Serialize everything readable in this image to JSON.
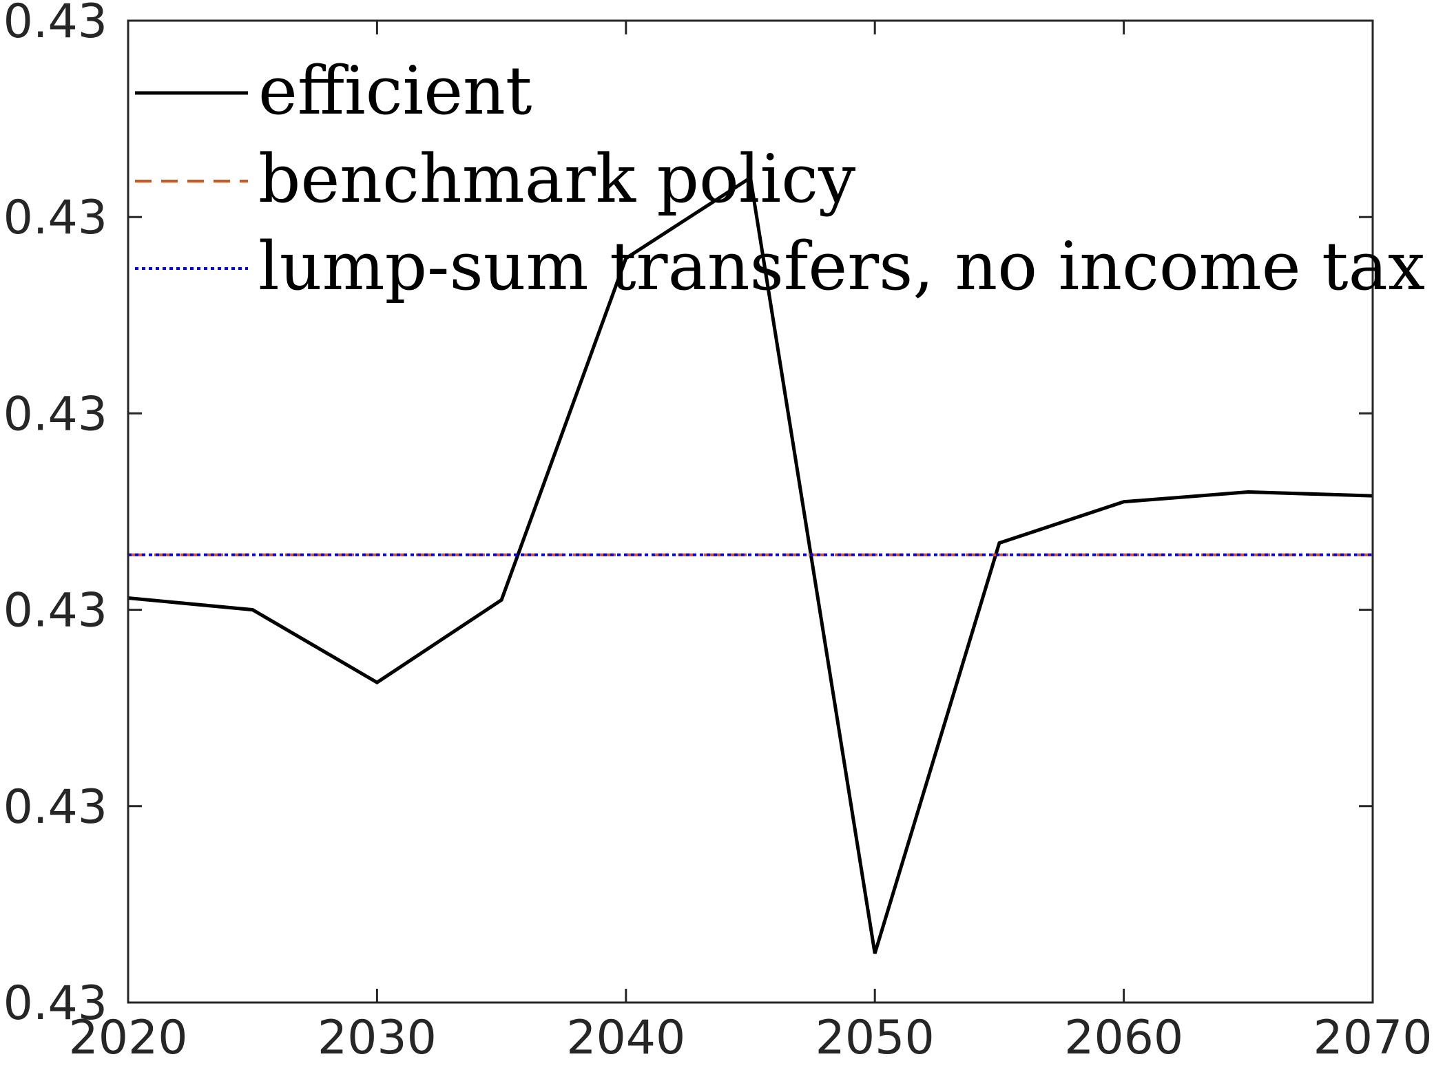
{
  "chart_data": {
    "type": "line",
    "title": "",
    "xlabel": "",
    "ylabel": "",
    "xlim": [
      2020,
      2070
    ],
    "ylim": [
      0,
      5
    ],
    "x_ticks": [
      2020,
      2030,
      2040,
      2050,
      2060,
      2070
    ],
    "x_tick_labels": [
      "2020",
      "2030",
      "2040",
      "2050",
      "2060",
      "2070"
    ],
    "y_ticks": [
      0,
      1,
      2,
      3,
      4,
      5
    ],
    "y_tick_labels": [
      "0.43",
      "0.43",
      "0.43",
      "0.43",
      "0.43",
      "0.43"
    ],
    "y_scale_note": "tick labels all print 0.43; values are relative positions between ticks",
    "grid": false,
    "legend_position": "top-left",
    "series": [
      {
        "name": "efficient",
        "color": "#000000",
        "dash": "solid",
        "x": [
          2020,
          2025,
          2030,
          2035,
          2040,
          2045,
          2050,
          2055,
          2060,
          2065,
          2070
        ],
        "y": [
          2.06,
          2.0,
          1.63,
          2.05,
          3.79,
          4.2,
          0.25,
          2.34,
          2.55,
          2.6,
          2.58
        ]
      },
      {
        "name": "benchmark policy",
        "color": "#D95319",
        "dash": "dashed",
        "x": [
          2020,
          2070
        ],
        "y": [
          2.28,
          2.28
        ]
      },
      {
        "name": "lump-sum transfers, no income tax",
        "color": "#0000FF",
        "dash": "dotted",
        "x": [
          2020,
          2070
        ],
        "y": [
          2.28,
          2.28
        ]
      }
    ]
  }
}
